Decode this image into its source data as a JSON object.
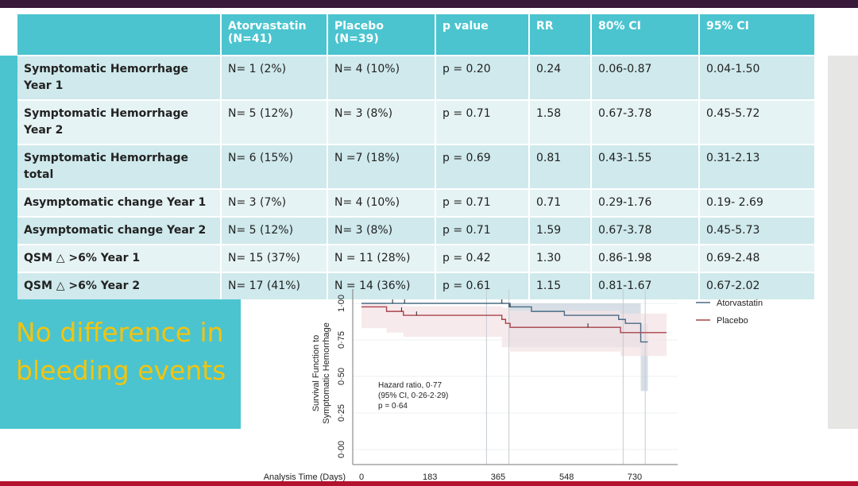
{
  "callout": "No difference in bleeding events",
  "table": {
    "headers": [
      "",
      "Atorvastatin (N=41)",
      "Placebo (N=39)",
      "p value",
      "RR",
      "80% CI",
      "95% CI"
    ],
    "rows": [
      [
        "Symptomatic Hemorrhage Year 1",
        "N= 1 (2%)",
        "N= 4 (10%)",
        "p = 0.20",
        "0.24",
        "0.06-0.87",
        "0.04-1.50"
      ],
      [
        "Symptomatic Hemorrhage Year 2",
        "N= 5 (12%)",
        "N= 3 (8%)",
        "p = 0.71",
        "1.58",
        "0.67-3.78",
        "0.45-5.72"
      ],
      [
        "Symptomatic Hemorrhage total",
        "N= 6 (15%)",
        "N =7 (18%)",
        "p = 0.69",
        "0.81",
        "0.43-1.55",
        "0.31-2.13"
      ],
      [
        "Asymptomatic change Year 1",
        "N= 3 (7%)",
        "N= 4 (10%)",
        "p = 0.71",
        "0.71",
        "0.29-1.76",
        "0.19- 2.69"
      ],
      [
        "Asymptomatic change Year 2",
        "N= 5 (12%)",
        "N= 3 (8%)",
        "p = 0.71",
        "1.59",
        "0.67-3.78",
        "0.45-5.73"
      ],
      [
        "QSM △ >6% Year 1",
        "N= 15 (37%)",
        "N = 11 (28%)",
        "p = 0.42",
        "1.30",
        "0.86-1.98",
        "0.69-2.48"
      ],
      [
        "QSM △ >6% Year 2",
        "N= 17 (41%)",
        "N = 14 (36%)",
        "p = 0.61",
        "1.15",
        "0.81-1.67",
        "0.67-2.02"
      ]
    ]
  },
  "chart_data": {
    "type": "line",
    "subtype": "kaplan-meier step",
    "xlabel": "Analysis Time (Days)",
    "ylabel": [
      "Survival Function to",
      "Symptomatic Hemorrhage"
    ],
    "xticks": [
      "0",
      "183",
      "365",
      "548",
      "730"
    ],
    "yticks": [
      "0·00",
      "0·25",
      "0·50",
      "0·75",
      "1·00"
    ],
    "xlim": [
      0,
      830
    ],
    "ylim": [
      0,
      1.05
    ],
    "grid": "horizontal",
    "legend_position": "right",
    "reference_lines_days": [
      334,
      394,
      699,
      758
    ],
    "annotation": [
      "Hazard ratio, 0·77",
      "(95% CI, 0·26-2·29)",
      "p = 0·64"
    ],
    "series": [
      {
        "name": "Atorvastatin",
        "color": "#4a6b84",
        "band_color": "#c9d3dd",
        "steps": [
          [
            0,
            1.0
          ],
          [
            394,
            0.976
          ],
          [
            454,
            0.945
          ],
          [
            542,
            0.918
          ],
          [
            687,
            0.89
          ],
          [
            705,
            0.863
          ],
          [
            746,
            0.736
          ],
          [
            765,
            0.736
          ]
        ],
        "ci": [
          [
            0,
            1.0,
            1.0
          ],
          [
            394,
            0.7,
            1.0
          ],
          [
            746,
            0.4,
            0.86
          ],
          [
            765,
            0.4,
            0.86
          ]
        ],
        "censored": [
          83,
          115,
          375,
          397
        ]
      },
      {
        "name": "Placebo",
        "color": "#a8434b",
        "band_color": "#f4e3e5",
        "steps": [
          [
            0,
            0.976
          ],
          [
            67,
            0.945
          ],
          [
            112,
            0.918
          ],
          [
            375,
            0.89
          ],
          [
            385,
            0.863
          ],
          [
            397,
            0.836
          ],
          [
            692,
            0.8
          ],
          [
            815,
            0.8
          ]
        ],
        "ci": [
          [
            0,
            0.83,
            1.0
          ],
          [
            67,
            0.8,
            0.99
          ],
          [
            112,
            0.77,
            0.98
          ],
          [
            375,
            0.7,
            0.97
          ],
          [
            397,
            0.67,
            0.95
          ],
          [
            692,
            0.64,
            0.93
          ],
          [
            815,
            0.64,
            0.93
          ]
        ],
        "censored": [
          107,
          147,
          605
        ]
      }
    ]
  }
}
